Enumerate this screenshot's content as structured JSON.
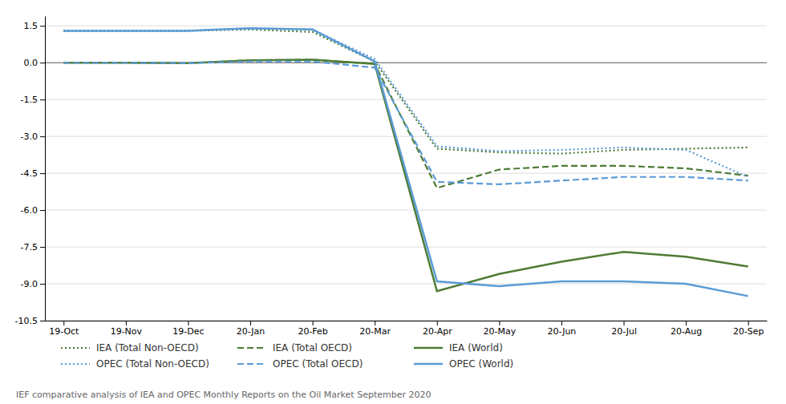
{
  "chart_data": {
    "type": "line",
    "categories": [
      "19-Oct",
      "19-Nov",
      "19-Dec",
      "20-Jan",
      "20-Feb",
      "20-Mar",
      "20-Apr",
      "20-May",
      "20-Jun",
      "20-Jul",
      "20-Aug",
      "20-Sep"
    ],
    "series": [
      {
        "name": "IEA (Total Non-OECD)",
        "color": "#4d7c35",
        "line_style": "dotted",
        "values": [
          1.3,
          1.3,
          1.3,
          1.35,
          1.25,
          0.05,
          -3.5,
          -3.65,
          -3.7,
          -3.55,
          -3.5,
          -3.45
        ]
      },
      {
        "name": "IEA (Total OECD)",
        "color": "#4d7c35",
        "line_style": "dashed",
        "values": [
          0.0,
          0.0,
          -0.02,
          0.1,
          0.12,
          -0.05,
          -5.1,
          -4.35,
          -4.2,
          -4.2,
          -4.3,
          -4.6
        ]
      },
      {
        "name": "IEA (World)",
        "color": "#4d7c35",
        "line_style": "solid",
        "values": [
          0.0,
          0.0,
          -0.02,
          0.1,
          0.12,
          -0.05,
          -9.3,
          -8.6,
          -8.1,
          -7.7,
          -7.9,
          -8.3
        ]
      },
      {
        "name": "OPEC (Total Non-OECD)",
        "color": "#5b9bd5",
        "line_style": "dotted",
        "values": [
          1.3,
          1.3,
          1.3,
          1.4,
          1.35,
          0.15,
          -3.4,
          -3.6,
          -3.55,
          -3.45,
          -3.55,
          -4.65
        ]
      },
      {
        "name": "OPEC (Total OECD)",
        "color": "#5b9bd5",
        "line_style": "dashed",
        "values": [
          0.0,
          0.0,
          -0.02,
          0.05,
          0.05,
          -0.2,
          -4.85,
          -4.95,
          -4.8,
          -4.65,
          -4.65,
          -4.8
        ]
      },
      {
        "name": "OPEC (World)",
        "color": "#5b9bd5",
        "line_style": "solid",
        "values": [
          1.3,
          1.3,
          1.3,
          1.4,
          1.35,
          0.05,
          -8.9,
          -9.1,
          -8.9,
          -8.9,
          -9.0,
          -9.5
        ]
      }
    ],
    "ylim": [
      -10.5,
      1.9
    ],
    "yticks": [
      1.5,
      {
        "value": 0.0,
        "label": "0.0"
      },
      -1.5,
      {
        "value": -3.0,
        "label": "-3.0"
      },
      -4.5,
      {
        "value": -6.0,
        "label": "-6.0"
      },
      -7.5,
      {
        "value": -9.0,
        "label": "-9.0"
      },
      -10.5
    ],
    "grid": true,
    "legend": "bottom",
    "footnote": "IEF comparative analysis of IEA and OPEC Monthly Reports on the Oil Market September 2020"
  }
}
